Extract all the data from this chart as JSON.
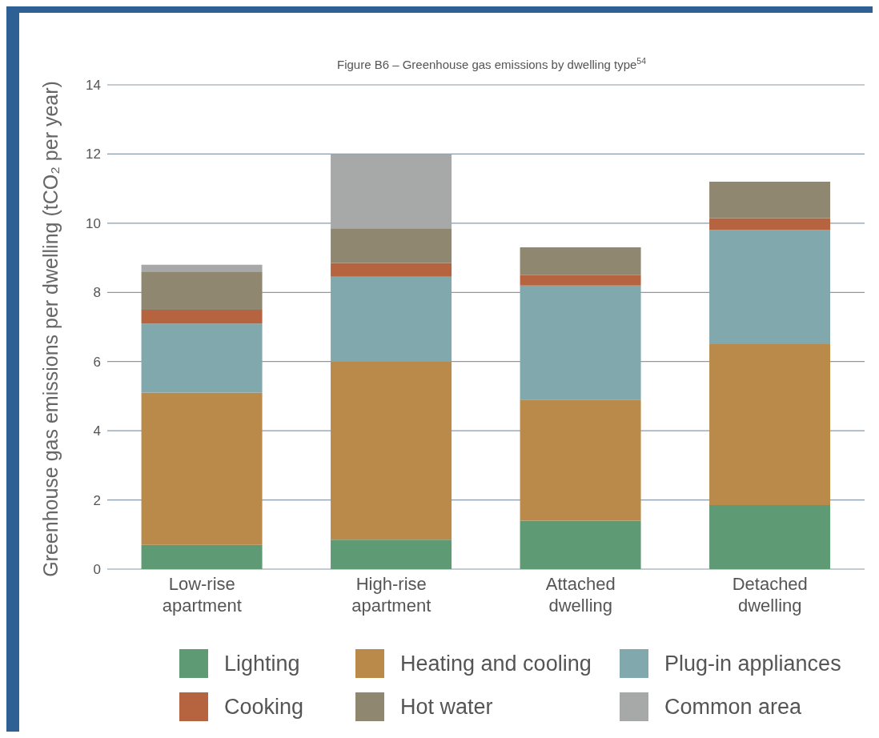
{
  "chart_data": {
    "type": "bar",
    "stacked": true,
    "title": "Figure B6 – Greenhouse gas emissions by dwelling type$^{54}$",
    "ylabel": "Greenhouse gas emissions per dwelling (tCO₂ per year)",
    "categories": [
      "Low-rise apartment",
      "High-rise apartment",
      "Attached dwelling",
      "Detached dwelling"
    ],
    "series": [
      {
        "name": "Lighting",
        "color": "#5e9a74",
        "values": [
          0.7,
          0.85,
          1.4,
          1.85
        ]
      },
      {
        "name": "Heating and cooling",
        "color": "#b98a4a",
        "values": [
          4.4,
          5.15,
          3.5,
          4.65
        ]
      },
      {
        "name": "Plug-in appliances",
        "color": "#80a8ad",
        "values": [
          2.0,
          2.45,
          3.3,
          3.3
        ]
      },
      {
        "name": "Cooking",
        "color": "#b5643f",
        "values": [
          0.4,
          0.4,
          0.3,
          0.35
        ]
      },
      {
        "name": "Hot water",
        "color": "#8f8770",
        "values": [
          1.1,
          1.0,
          0.8,
          1.05
        ]
      },
      {
        "name": "Common area",
        "color": "#a7a9a9",
        "values": [
          0.2,
          2.15,
          null,
          null
        ]
      }
    ],
    "ylim": [
      0,
      14
    ],
    "yticks": [
      0,
      2,
      4,
      6,
      8,
      10,
      12,
      14
    ],
    "grid": "y",
    "legend": "bottom"
  }
}
